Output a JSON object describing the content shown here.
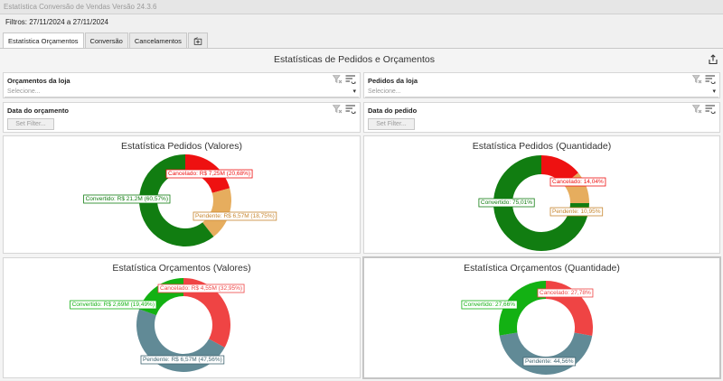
{
  "window": {
    "title": "Estatística Conversão de Vendas Versão 24.3.6"
  },
  "filters_line": "Filtros: 27/11/2024 a 27/11/2024",
  "tabs": [
    {
      "label": "Estatística Orçamentos",
      "active": true
    },
    {
      "label": "Conversão",
      "active": false
    },
    {
      "label": "Cancelamentos",
      "active": false
    }
  ],
  "page_title": "Estatísticas de Pedidos e Orçamentos",
  "filters": {
    "orcamentos_loja": {
      "label": "Orçamentos da loja",
      "placeholder": "Selecione..."
    },
    "pedidos_loja": {
      "label": "Pedidos da loja",
      "placeholder": "Selecione..."
    },
    "data_orcamento": {
      "label": "Data do orçamento",
      "button": "Set Filter..."
    },
    "data_pedido": {
      "label": "Data do pedido",
      "button": "Set Filter..."
    }
  },
  "colors": {
    "green": "#117d11",
    "red": "#ee1111",
    "orange": "#e6ad5e",
    "bright_green": "#13b113",
    "light_red": "#ef4444",
    "slate": "#618a96"
  },
  "chart_data": [
    {
      "type": "pie",
      "title": "Estatística Pedidos (Valores)",
      "series": [
        {
          "name": "Cancelado",
          "value": 20.68,
          "label": "Cancelado: R$ 7,25M (20,68%)",
          "color": "#ee1111"
        },
        {
          "name": "Pendente",
          "value": 18.75,
          "label": "Pendente: R$ 6,57M (18,75%)",
          "color": "#e6ad5e"
        },
        {
          "name": "Convertido",
          "value": 60.57,
          "label": "Convertido: R$ 21,2M (60,57%)",
          "color": "#117d11"
        }
      ]
    },
    {
      "type": "pie",
      "title": "Estatística Pedidos (Quantidade)",
      "series": [
        {
          "name": "Cancelado",
          "value": 14.04,
          "label": "Cancelado: 14,04%",
          "color": "#ee1111"
        },
        {
          "name": "Pendente",
          "value": 10.95,
          "label": "Pendente: 10,95%",
          "color": "#e6ad5e"
        },
        {
          "name": "Convertido",
          "value": 75.01,
          "label": "Convertido: 75,01%",
          "color": "#117d11"
        }
      ]
    },
    {
      "type": "pie",
      "title": "Estatística Orçamentos (Valores)",
      "series": [
        {
          "name": "Cancelado",
          "value": 32.95,
          "label": "Cancelado: R$ 4,55M (32,95%)",
          "color": "#ef4444"
        },
        {
          "name": "Pendente",
          "value": 47.56,
          "label": "Pendente: R$ 6,57M (47,56%)",
          "color": "#618a96"
        },
        {
          "name": "Convertido",
          "value": 19.49,
          "label": "Convertido: R$ 2,69M (19,49%)",
          "color": "#13b113"
        }
      ]
    },
    {
      "type": "pie",
      "title": "Estatística Orçamentos (Quantidade)",
      "series": [
        {
          "name": "Cancelado",
          "value": 27.78,
          "label": "Cancelado: 27,78%",
          "color": "#ef4444"
        },
        {
          "name": "Pendente",
          "value": 44.56,
          "label": "Pendente: 44,56%",
          "color": "#618a96"
        },
        {
          "name": "Convertido",
          "value": 27.66,
          "label": "Convertido: 27,66%",
          "color": "#13b113"
        }
      ]
    }
  ]
}
